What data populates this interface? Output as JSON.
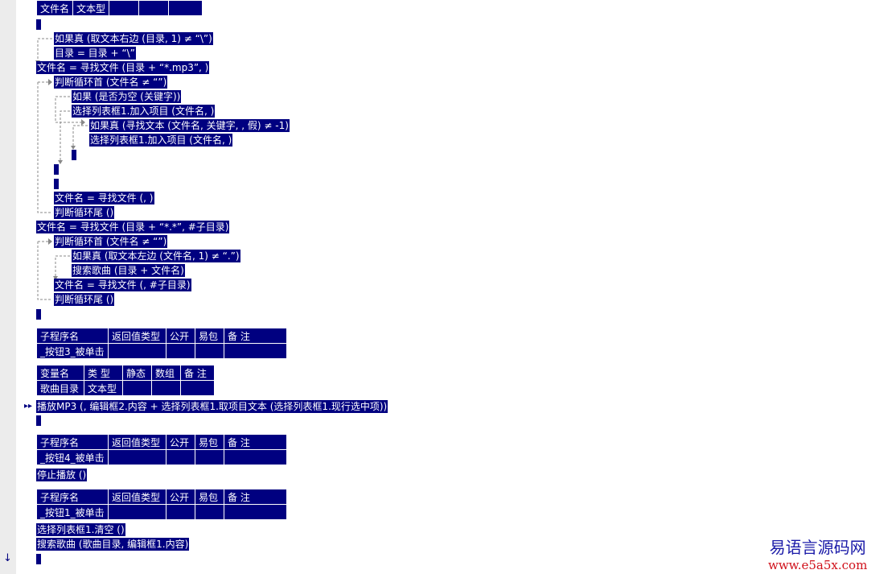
{
  "top_table": {
    "cells": [
      "文件名",
      "文本型",
      "",
      "",
      ""
    ]
  },
  "code_block_1": [
    "如果真 (取文本右边 (目录, 1) ≠ “\\”)",
    "目录 = 目录 + “\\”",
    "文件名 = 寻找文件 (目录 + “*.mp3”, )",
    "判断循环首 (文件名 ≠ “”)",
    "如果 (是否为空 (关键字))",
    "选择列表框1.加入项目 (文件名, )",
    "如果真 (寻找文本 (文件名, 关键字, , 假) ≠ -1)",
    "选择列表框1.加入项目 (文件名, )",
    "文件名 = 寻找文件 (, )",
    "判断循环尾 ()",
    "文件名 = 寻找文件 (目录 + “*.*”, #子目录)",
    "判断循环首 (文件名 ≠ “”)",
    "如果真 (取文本左边 (文件名, 1) ≠ “.”)",
    "搜索歌曲 (目录 + 文件名)",
    "文件名 = 寻找文件 (, #子目录)",
    "判断循环尾 ()"
  ],
  "sub_header": [
    "子程序名",
    "返回值类型",
    "公开",
    "易包",
    "备 注"
  ],
  "sub_button3": {
    "name": "_按钮3_被单击"
  },
  "var_header": [
    "变量名",
    "类 型",
    "静态",
    "数组",
    "备 注"
  ],
  "var_row": [
    "歌曲目录",
    "文本型"
  ],
  "button3_code": "播放MP3 (, 编辑框2.内容 + 选择列表框1.取项目文本 (选择列表框1.现行选中项))",
  "sub_button4": {
    "name": "_按钮4_被单击"
  },
  "button4_code": "停止播放 ()",
  "sub_button1": {
    "name": "_按钮1_被单击"
  },
  "button1_code": [
    "选择列表框1.清空 ()",
    "搜索歌曲 (歌曲目录, 编辑框1.内容)"
  ],
  "watermark": {
    "title": "易语言源码网",
    "url": "www.e5a5x.com"
  }
}
